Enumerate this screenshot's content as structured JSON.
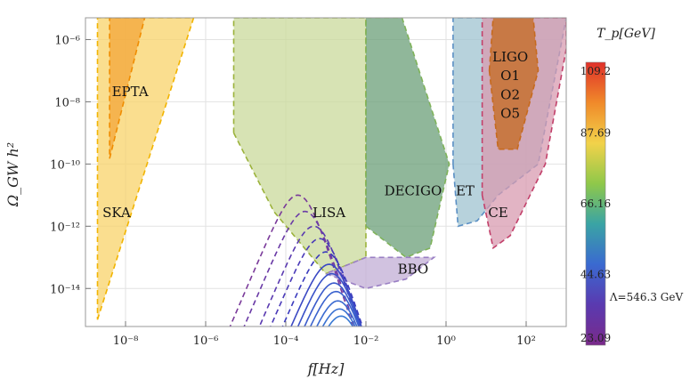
{
  "chart_data": {
    "type": "line",
    "xlabel": "f[Hz]",
    "ylabel": "Ω_GW h²",
    "x_scale": "log",
    "y_scale": "log",
    "xlim": [
      1e-09,
      1000.0
    ],
    "ylim": [
      6e-16,
      5e-06
    ],
    "x_tick_labels": [
      "10⁻⁸",
      "10⁻⁶",
      "10⁻⁴",
      "10⁻²",
      "10⁰",
      "10²"
    ],
    "y_tick_labels": [
      "10⁻⁶",
      "10⁻⁸",
      "10⁻¹⁰",
      "10⁻¹²",
      "10⁻¹⁴"
    ],
    "grid": true,
    "regions": [
      {
        "label": "SKA",
        "color": "#f8d36a",
        "edge": "#f2b400",
        "points": [
          [
            2e-09,
            1e-15
          ],
          [
            5e-07,
            5e-06
          ],
          [
            2e-09,
            5e-06
          ]
        ]
      },
      {
        "label": "EPTA",
        "color": "#f3a53a",
        "edge": "#f08c00",
        "points": [
          [
            4e-09,
            1.5e-10
          ],
          [
            3e-08,
            5e-06
          ],
          [
            4e-09,
            5e-06
          ]
        ]
      },
      {
        "label": "LISA",
        "color": "#c9d99b",
        "edge": "#9bb23a",
        "points": [
          [
            5e-06,
            1e-09
          ],
          [
            5e-05,
            3e-12
          ],
          [
            0.001,
            3e-14
          ],
          [
            0.01,
            1e-13
          ],
          [
            0.01,
            5e-06
          ],
          [
            5e-06,
            5e-06
          ]
        ]
      },
      {
        "label": "DECIGO",
        "color": "#6b9f78",
        "edge": "#7fb35a",
        "points": [
          [
            0.01,
            1e-12
          ],
          [
            0.1,
            1e-13
          ],
          [
            0.4,
            2e-13
          ],
          [
            1.2,
            1e-10
          ],
          [
            0.08,
            5e-06
          ],
          [
            0.01,
            5e-06
          ]
        ]
      },
      {
        "label": "BBO",
        "color": "#c1aed6",
        "edge": "#9a7fc4",
        "points": [
          [
            0.001,
            3e-14
          ],
          [
            0.01,
            1e-14
          ],
          [
            0.1,
            2e-14
          ],
          [
            0.5,
            1e-13
          ],
          [
            0.01,
            1e-13
          ]
        ]
      },
      {
        "label": "ET",
        "color": "#9fc3d0",
        "edge": "#5a8fc4",
        "points": [
          [
            1.5,
            1e-10
          ],
          [
            2,
            1e-12
          ],
          [
            6,
            1.5e-12
          ],
          [
            20,
            1e-11
          ],
          [
            200,
            1e-10
          ],
          [
            1000,
            5e-06
          ],
          [
            1.5,
            5e-06
          ]
        ]
      },
      {
        "label": "CE",
        "color": "#d89bb0",
        "edge": "#c2406a",
        "points": [
          [
            8,
            1e-11
          ],
          [
            15,
            2e-13
          ],
          [
            40,
            5e-13
          ],
          [
            300,
            1e-10
          ],
          [
            1000,
            5e-07
          ],
          [
            1000,
            5e-06
          ],
          [
            8,
            5e-06
          ]
        ]
      },
      {
        "label": "LIGO",
        "color": "#c66a1e",
        "edge": "#c66a1e",
        "points": [
          [
            12,
            1e-07
          ],
          [
            15,
            5e-06
          ],
          [
            150,
            5e-06
          ],
          [
            200,
            1e-07
          ],
          [
            60,
            3e-10
          ],
          [
            20,
            3e-10
          ]
        ]
      }
    ],
    "region_text": [
      "EPTA",
      "SKA",
      "LISA",
      "DECIGO",
      "BBO",
      "ET",
      "CE",
      "LIGO",
      "O1",
      "O2",
      "O5"
    ],
    "series_peaks": [
      {
        "peak_f": 0.0002,
        "peak_omega": 1e-11,
        "color": "#7a3a9a",
        "dashed": true
      },
      {
        "peak_f": 0.0003,
        "peak_omega": 3e-12,
        "color": "#6a3aa6",
        "dashed": true
      },
      {
        "peak_f": 0.0005,
        "peak_omega": 1e-12,
        "color": "#5a3ab0",
        "dashed": true
      },
      {
        "peak_f": 0.0007,
        "peak_omega": 4e-13,
        "color": "#4a3ab8",
        "dashed": true
      },
      {
        "peak_f": 0.001,
        "peak_omega": 1.5e-13,
        "color": "#3a3abd",
        "dashed": true
      },
      {
        "peak_f": 0.0012,
        "peak_omega": 6e-14,
        "color": "#3a48c4",
        "dashed": false
      },
      {
        "peak_f": 0.0014,
        "peak_omega": 3e-14,
        "color": "#3a52c8",
        "dashed": false
      },
      {
        "peak_f": 0.0016,
        "peak_omega": 1.5e-14,
        "color": "#3a5acb",
        "dashed": false
      },
      {
        "peak_f": 0.0018,
        "peak_omega": 8e-15,
        "color": "#3a62ce",
        "dashed": false
      },
      {
        "peak_f": 0.002,
        "peak_omega": 4e-15,
        "color": "#3a6ad0",
        "dashed": false
      },
      {
        "peak_f": 0.0022,
        "peak_omega": 2.2e-15,
        "color": "#3a72d2",
        "dashed": false
      },
      {
        "peak_f": 0.0024,
        "peak_omega": 1.3e-15,
        "color": "#3a7ad4",
        "dashed": false
      }
    ],
    "colorbar": {
      "title": "T_p[GeV]",
      "tick_labels": [
        "109.2",
        "87.69",
        "66.16",
        "44.63",
        "23.09"
      ],
      "annotation": "Λ=546.3 GeV",
      "colors": [
        "#e0302a",
        "#f08a2a",
        "#f2d24a",
        "#8fc84a",
        "#3aa4a4",
        "#3a6ad0",
        "#5a3ab0",
        "#7a2a8a"
      ]
    }
  }
}
